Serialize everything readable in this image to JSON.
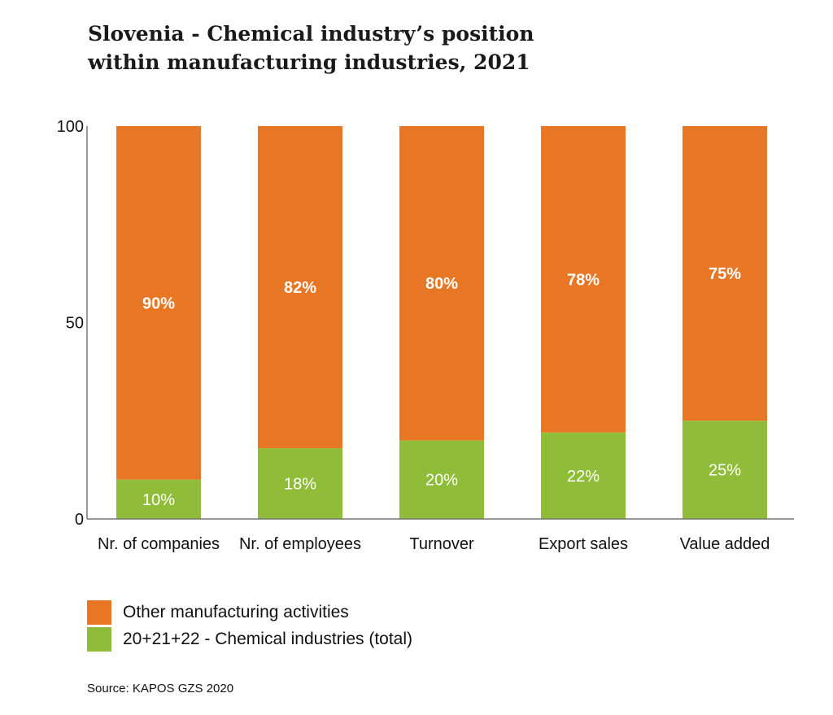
{
  "chart_data": {
    "type": "bar",
    "stacked": true,
    "title": [
      "Slovenia - Chemical industry’s position",
      "within manufacturing industries, 2021"
    ],
    "categories": [
      "Nr. of companies",
      "Nr. of employees",
      "Turnover",
      "Export sales",
      "Value added"
    ],
    "series": [
      {
        "name": "20+21+22 - Chemical industries (total)",
        "values": [
          10,
          18,
          20,
          22,
          25
        ],
        "labels": [
          "10%",
          "18%",
          "20%",
          "22%",
          "25%"
        ],
        "color": "#8FBD3A"
      },
      {
        "name": "Other manufacturing activities",
        "values": [
          90,
          82,
          80,
          78,
          75
        ],
        "labels": [
          "90%",
          "82%",
          "80%",
          "78%",
          "75%"
        ],
        "color": "#E77724"
      }
    ],
    "ylim": [
      0,
      100
    ],
    "yticks": [
      "0",
      "50",
      "100"
    ],
    "grid": false,
    "legend": "bottom-left"
  },
  "source": "Source: KAPOS GZS 2020"
}
